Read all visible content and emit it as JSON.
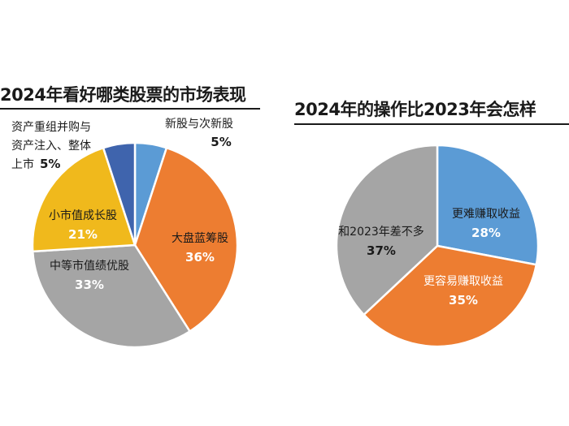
{
  "chart_data": [
    {
      "type": "pie",
      "title": "2024年看好哪类股票的市场表现",
      "slices": [
        {
          "label": "新股与次新股",
          "value": 5,
          "display": "5%",
          "color": "#5b9bd5"
        },
        {
          "label": "大盘蓝筹股",
          "value": 36,
          "display": "36%",
          "color": "#ed7d31"
        },
        {
          "label": "中等市值绩优股",
          "value": 33,
          "display": "33%",
          "color": "#a5a5a5"
        },
        {
          "label": "小市值成长股",
          "value": 21,
          "display": "21%",
          "color": "#f0b91c"
        },
        {
          "label_lines": [
            "资产重组并购与",
            "资产注入、整体",
            "上市"
          ],
          "value": 5,
          "display": "5%",
          "color": "#3f64ad"
        }
      ]
    },
    {
      "type": "pie",
      "title": "2024年的操作比2023年会怎样",
      "slices": [
        {
          "label": "更难赚取收益",
          "value": 28,
          "display": "28%",
          "color": "#5b9bd5"
        },
        {
          "label": "更容易赚取收益",
          "value": 35,
          "display": "35%",
          "color": "#ed7d31"
        },
        {
          "label": "和2023年差不多",
          "value": 37,
          "display": "37%",
          "color": "#a5a5a5"
        }
      ]
    }
  ]
}
